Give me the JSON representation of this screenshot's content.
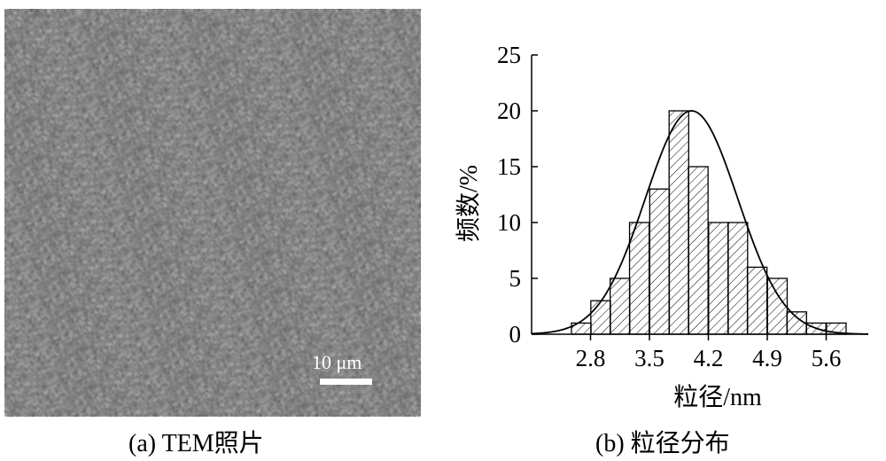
{
  "panel_a": {
    "caption": "(a) TEM照片",
    "scale_bar_label": "10 μm"
  },
  "panel_b": {
    "caption": "(b) 粒径分布"
  },
  "chart_data": {
    "type": "bar",
    "xlabel": "粒径/nm",
    "ylabel": "频数/%",
    "xlim": [
      2.1,
      6.1
    ],
    "ylim": [
      0,
      25
    ],
    "x_ticks": [
      2.8,
      3.5,
      4.2,
      4.9,
      5.6
    ],
    "y_ticks": [
      0,
      5,
      10,
      15,
      20,
      25
    ],
    "bin_width": 0.233,
    "bins": [
      {
        "x": 2.69,
        "value": 1
      },
      {
        "x": 2.92,
        "value": 3
      },
      {
        "x": 3.15,
        "value": 5
      },
      {
        "x": 3.38,
        "value": 10
      },
      {
        "x": 3.62,
        "value": 13
      },
      {
        "x": 3.85,
        "value": 20
      },
      {
        "x": 4.08,
        "value": 15
      },
      {
        "x": 4.32,
        "value": 10
      },
      {
        "x": 4.55,
        "value": 10
      },
      {
        "x": 4.78,
        "value": 6
      },
      {
        "x": 5.02,
        "value": 5
      },
      {
        "x": 5.25,
        "value": 2
      },
      {
        "x": 5.48,
        "value": 1
      },
      {
        "x": 5.72,
        "value": 1
      }
    ],
    "fit_curve": {
      "type": "gaussian",
      "mean": 4.0,
      "sigma": 0.55,
      "peak": 20
    }
  }
}
